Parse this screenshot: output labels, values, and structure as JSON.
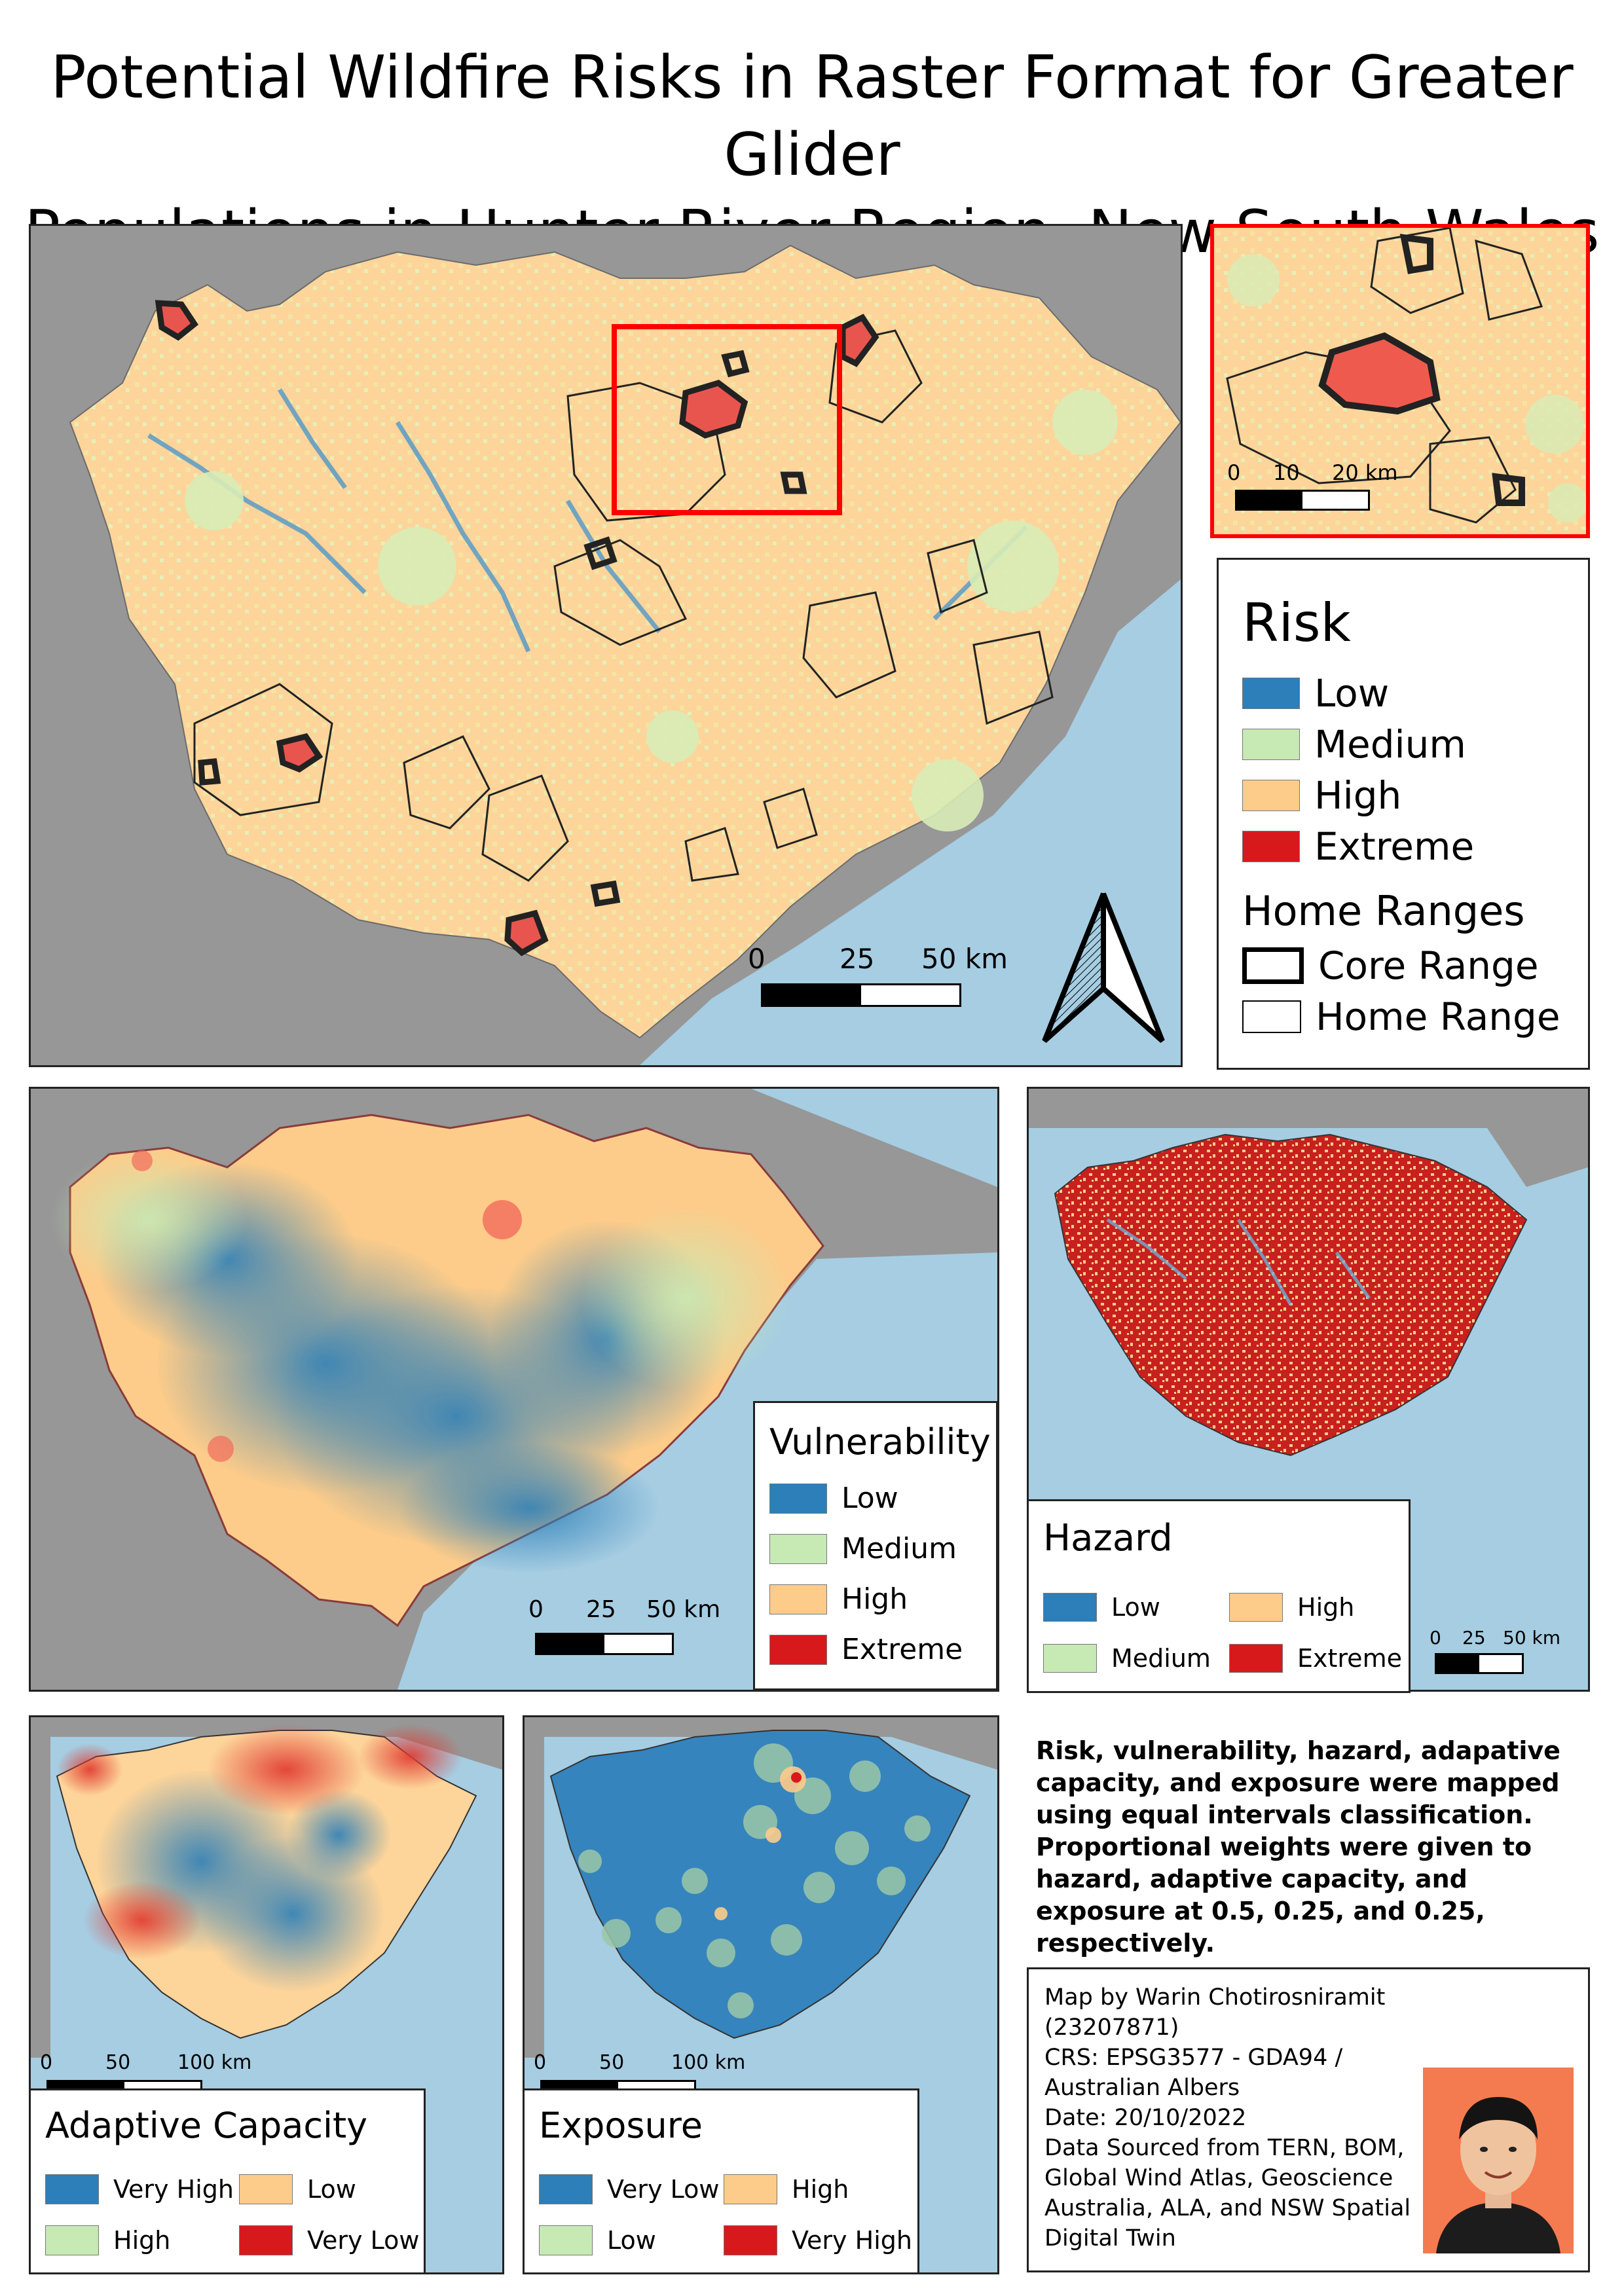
{
  "title_line1": "Potential Wildfire Risks in Raster Format for Greater Glider",
  "title_line2": "Populations in Hunter River Region, New South Wales",
  "colors": {
    "low": "#2c7fb8",
    "medium": "#c7e9b4",
    "high": "#fdcc8a",
    "extreme": "#d7191c",
    "ocean": "#a6cde2",
    "land_outside": "#979797",
    "inset_frame": "#ff0000"
  },
  "main_map": {
    "scale": {
      "labels": [
        "0",
        "25",
        "50 km"
      ]
    }
  },
  "inset_map": {
    "scale": {
      "labels": [
        "0",
        "10",
        "20 km"
      ]
    }
  },
  "north_arrow": {
    "icon": "north-arrow-icon"
  },
  "risk_legend": {
    "title": "Risk",
    "items": [
      {
        "label": "Low",
        "color": "#2c7fb8"
      },
      {
        "label": "Medium",
        "color": "#c7e9b4"
      },
      {
        "label": "High",
        "color": "#fdcc8a"
      },
      {
        "label": "Extreme",
        "color": "#d7191c"
      }
    ],
    "ranges_title": "Home Ranges",
    "ranges": [
      {
        "label": "Core Range"
      },
      {
        "label": "Home Range"
      }
    ]
  },
  "vulnerability": {
    "title": "Vulnerability",
    "items": [
      "Low",
      "Medium",
      "High",
      "Extreme"
    ],
    "scale": {
      "labels": [
        "0",
        "25",
        "50 km"
      ]
    }
  },
  "hazard": {
    "title": "Hazard",
    "items": [
      "Low",
      "Medium",
      "High",
      "Extreme"
    ],
    "scale": {
      "labels": [
        "0",
        "25",
        "50 km"
      ]
    }
  },
  "adaptive_capacity": {
    "title": "Adaptive Capacity",
    "items": [
      "Very High",
      "High",
      "Low",
      "Very Low"
    ],
    "scale": {
      "labels": [
        "0",
        "50",
        "100 km"
      ]
    }
  },
  "exposure": {
    "title": "Exposure",
    "items": [
      "Very Low",
      "Low",
      "High",
      "Very High"
    ],
    "scale": {
      "labels": [
        "0",
        "50",
        "100 km"
      ]
    }
  },
  "note": "Risk, vulnerability, hazard, adapative capacity, and exposure were mapped using equal intervals classification. Proportional weights were given to hazard, adaptive capacity, and exposure at 0.5, 0.25, and 0.25, respectively.",
  "credit": {
    "lines": [
      "Map by Warin Chotirosniramit",
      "(23207871)",
      "CRS: EPSG3577 - GDA94 /",
      "Australian Albers",
      "Date: 20/10/2022",
      "Data Sourced from TERN, BOM,",
      "Global Wind Atlas, Geoscience",
      "Australia, ALA, and NSW Spatial",
      "Digital Twin"
    ],
    "photo": "author-photo"
  }
}
